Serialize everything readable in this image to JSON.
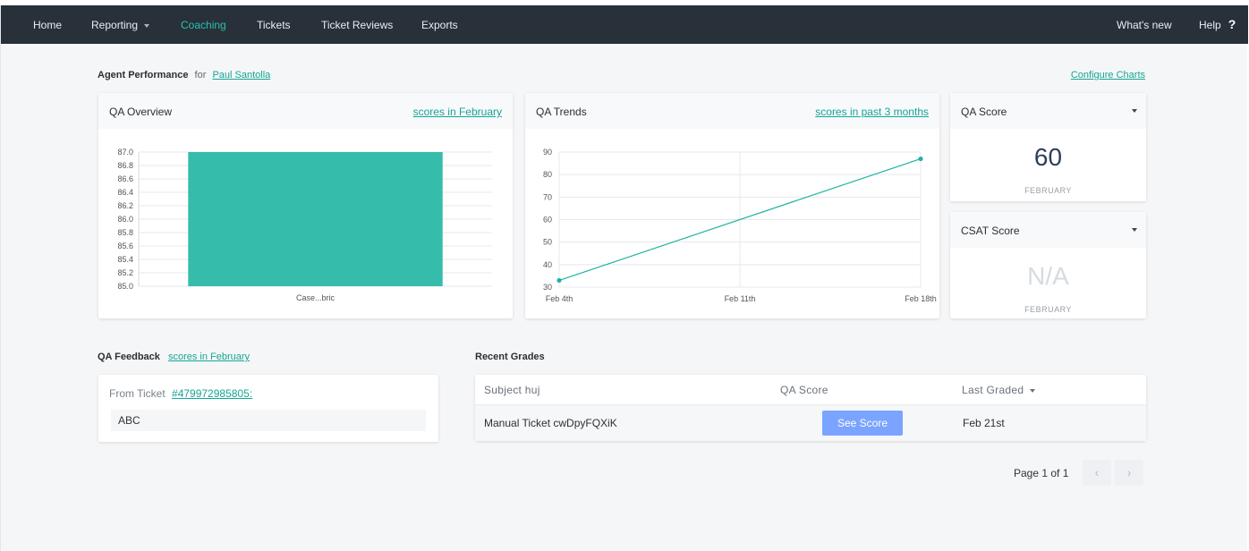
{
  "nav": {
    "home": "Home",
    "reporting": "Reporting",
    "coaching": "Coaching",
    "tickets": "Tickets",
    "ticket_reviews": "Ticket Reviews",
    "exports": "Exports",
    "whats_new": "What's new",
    "help": "Help",
    "help_icon": "?"
  },
  "header": {
    "title": "Agent Performance",
    "for": "for",
    "agent": "Paul Santolla",
    "configure": "Configure Charts"
  },
  "qa_overview": {
    "title": "QA Overview",
    "link": "scores in February",
    "chart_data": {
      "type": "bar",
      "categories": [
        "Case...bric"
      ],
      "values": [
        87.0
      ],
      "ylim": [
        85.0,
        87.0
      ],
      "yticks": [
        "87.0",
        "86.8",
        "86.6",
        "86.4",
        "86.2",
        "86.0",
        "85.8",
        "85.6",
        "85.4",
        "85.2",
        "85.0"
      ],
      "color": "#36bcab"
    }
  },
  "qa_trends": {
    "title": "QA Trends",
    "link": "scores in past 3 months",
    "chart_data": {
      "type": "line",
      "x": [
        "Feb 4th",
        "Feb 18th"
      ],
      "y": [
        33,
        87
      ],
      "xticks": [
        "Feb 4th",
        "Feb 11th",
        "Feb 18th"
      ],
      "yticks": [
        "90",
        "80",
        "70",
        "60",
        "50",
        "40",
        "30"
      ],
      "ylim": [
        30,
        90
      ],
      "color": "#1fb3a1"
    }
  },
  "qa_score": {
    "title": "QA Score",
    "value": "60",
    "period": "FEBRUARY"
  },
  "csat_score": {
    "title": "CSAT Score",
    "value": "N/A",
    "period": "FEBRUARY"
  },
  "feedback": {
    "title": "QA Feedback",
    "link": "scores in February",
    "from_label": "From Ticket",
    "ticket": "#479972985805:",
    "text": "ABC"
  },
  "recent_grades": {
    "title": "Recent Grades",
    "columns": {
      "subject": "Subject huj",
      "qa_score": "QA Score",
      "last_graded": "Last Graded"
    },
    "rows": [
      {
        "subject": "Manual Ticket cwDpyFQXiK",
        "button": "See Score",
        "date": "Feb 21st"
      }
    ]
  },
  "pager": {
    "text": "Page 1 of 1",
    "prev": "‹",
    "next": "›"
  }
}
